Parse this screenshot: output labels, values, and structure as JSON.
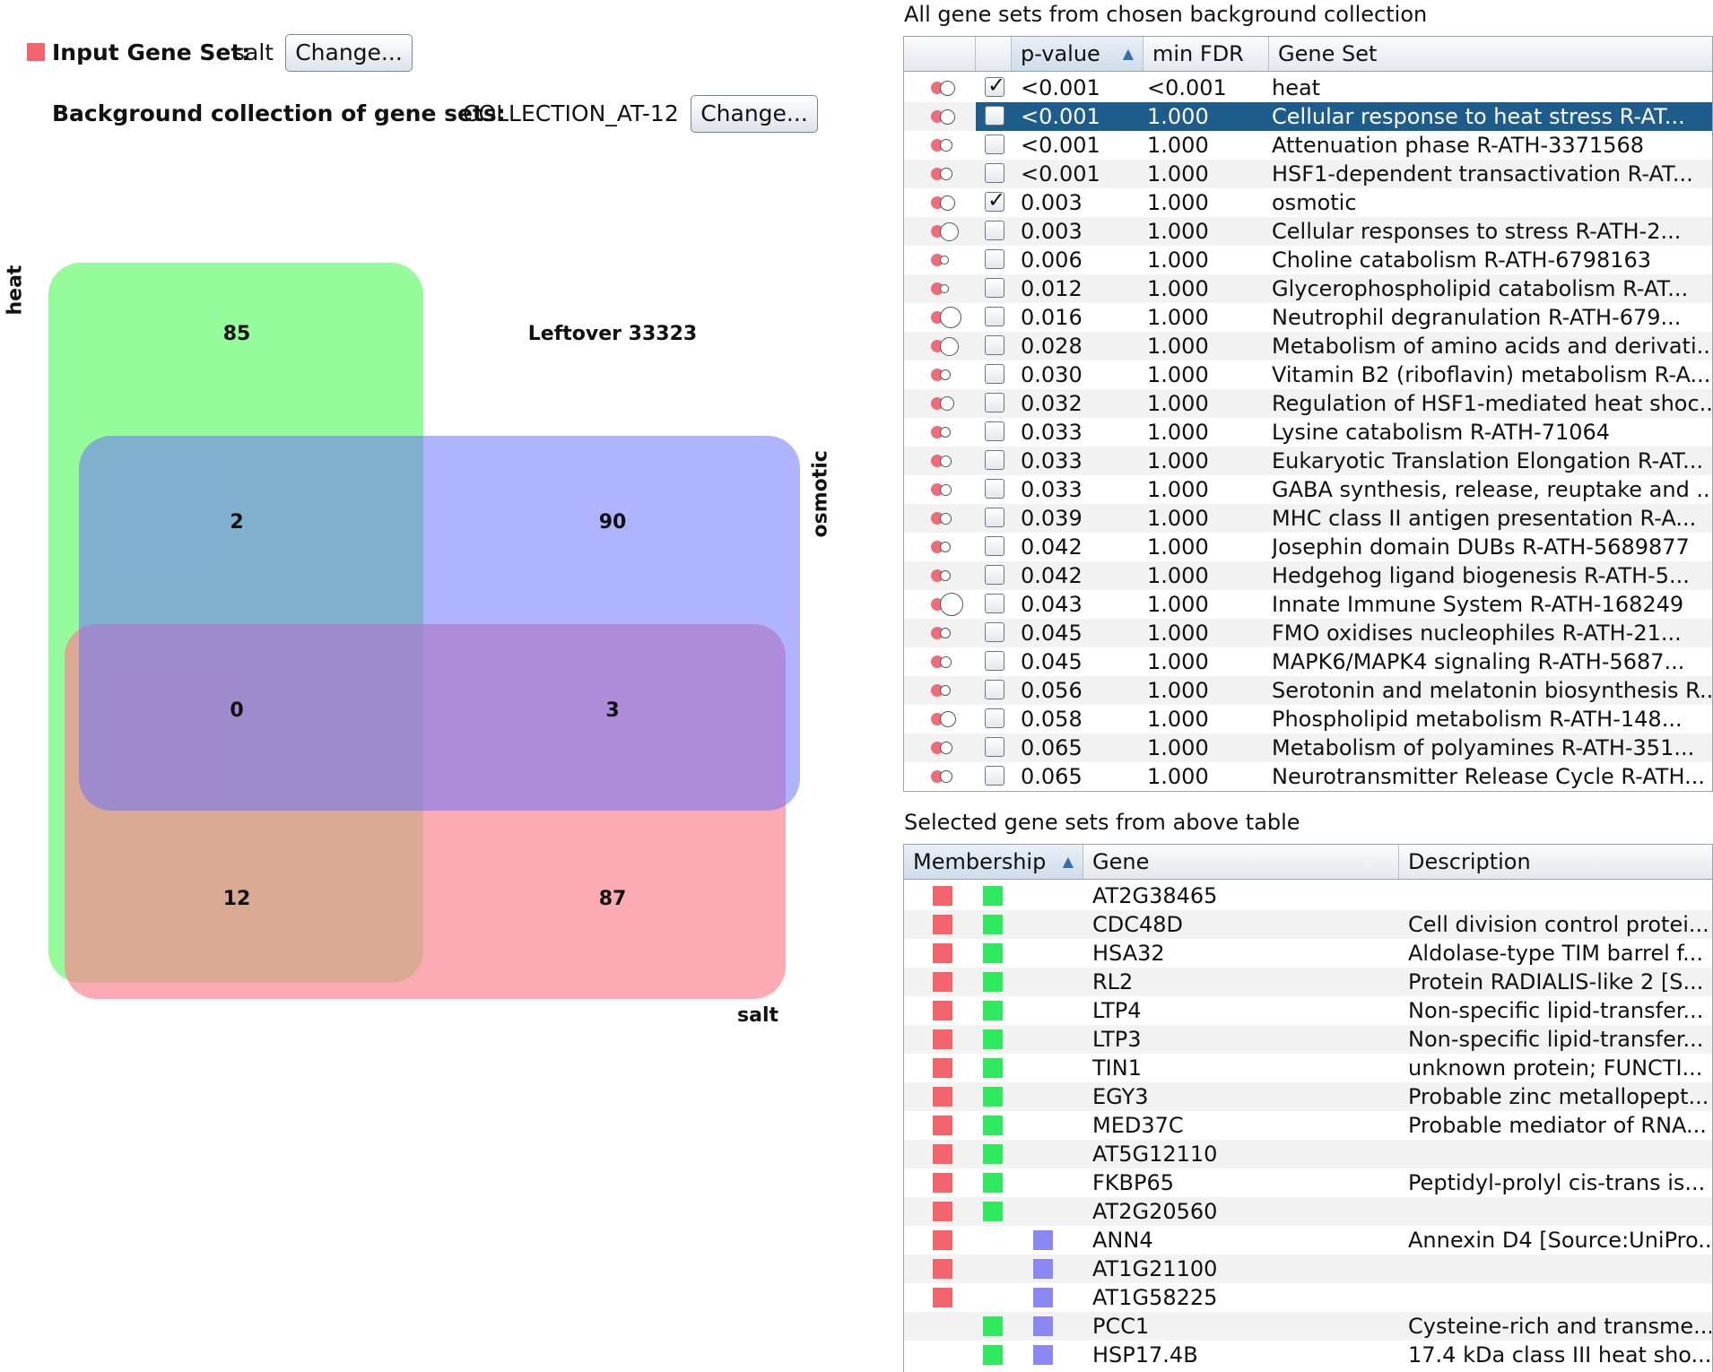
{
  "input": {
    "label": "Input Gene Set:",
    "value": "salt",
    "button": "Change...",
    "swatch_color": "#f4646e"
  },
  "background": {
    "label": "Background collection of gene sets:",
    "value": "COLLECTION_AT-12",
    "button": "Change..."
  },
  "venn": {
    "set_labels": {
      "heat": "heat",
      "osmotic": "osmotic",
      "salt": "salt"
    },
    "colors": {
      "heat": "#8afb8f",
      "osmotic": "#a5a9fb",
      "salt": "#fb9aa5"
    },
    "counts": {
      "heat_only": "85",
      "heat_osmotic": "2",
      "osmotic_only": "90",
      "all_three": "0",
      "osmotic_salt": "3",
      "heat_salt": "12",
      "salt_only": "87"
    },
    "leftover": "Leftover 33323"
  },
  "top_panel": {
    "title": "All gene sets from chosen background collection",
    "columns": [
      "",
      "",
      "p-value",
      "min FDR",
      "Gene Set"
    ],
    "rows": [
      {
        "p": "<0.001",
        "fdr": "<0.001",
        "name": "heat",
        "checked": true,
        "selected": false,
        "big": 0.55
      },
      {
        "p": "<0.001",
        "fdr": "1.000",
        "name": "Cellular response to heat stress  R-AT...",
        "checked": false,
        "selected": true,
        "big": 0.55
      },
      {
        "p": "<0.001",
        "fdr": "1.000",
        "name": "Attenuation phase  R-ATH-3371568",
        "checked": false,
        "selected": false,
        "big": 0.4
      },
      {
        "p": "<0.001",
        "fdr": "1.000",
        "name": "HSF1-dependent transactivation  R-AT...",
        "checked": false,
        "selected": false,
        "big": 0.4
      },
      {
        "p": "0.003",
        "fdr": "1.000",
        "name": "osmotic",
        "checked": true,
        "selected": false,
        "big": 0.55
      },
      {
        "p": "0.003",
        "fdr": "1.000",
        "name": "Cellular responses to stress  R-ATH-2...",
        "checked": false,
        "selected": false,
        "big": 0.8
      },
      {
        "p": "0.006",
        "fdr": "1.000",
        "name": "Choline catabolism  R-ATH-6798163",
        "checked": false,
        "selected": false,
        "big": 0.15
      },
      {
        "p": "0.012",
        "fdr": "1.000",
        "name": "Glycerophospholipid catabolism  R-AT...",
        "checked": false,
        "selected": false,
        "big": 0.15
      },
      {
        "p": "0.016",
        "fdr": "1.000",
        "name": "Neutrophil degranulation  R-ATH-679...",
        "checked": false,
        "selected": false,
        "big": 1.0
      },
      {
        "p": "0.028",
        "fdr": "1.000",
        "name": "Metabolism of amino acids and derivati...",
        "checked": false,
        "selected": false,
        "big": 0.8
      },
      {
        "p": "0.030",
        "fdr": "1.000",
        "name": "Vitamin B2 (riboflavin) metabolism  R-A...",
        "checked": false,
        "selected": false,
        "big": 0.25
      },
      {
        "p": "0.032",
        "fdr": "1.000",
        "name": "Regulation of HSF1-mediated heat shoc...",
        "checked": false,
        "selected": false,
        "big": 0.5
      },
      {
        "p": "0.033",
        "fdr": "1.000",
        "name": "Lysine catabolism  R-ATH-71064",
        "checked": false,
        "selected": false,
        "big": 0.25
      },
      {
        "p": "0.033",
        "fdr": "1.000",
        "name": "Eukaryotic Translation Elongation  R-AT...",
        "checked": false,
        "selected": false,
        "big": 0.3
      },
      {
        "p": "0.033",
        "fdr": "1.000",
        "name": "GABA synthesis, release, reuptake and ...",
        "checked": false,
        "selected": false,
        "big": 0.3
      },
      {
        "p": "0.039",
        "fdr": "1.000",
        "name": "MHC class II antigen presentation  R-A...",
        "checked": false,
        "selected": false,
        "big": 0.3
      },
      {
        "p": "0.042",
        "fdr": "1.000",
        "name": "Josephin domain DUBs  R-ATH-5689877",
        "checked": false,
        "selected": false,
        "big": 0.25
      },
      {
        "p": "0.042",
        "fdr": "1.000",
        "name": "Hedgehog ligand biogenesis  R-ATH-5...",
        "checked": false,
        "selected": false,
        "big": 0.25
      },
      {
        "p": "0.043",
        "fdr": "1.000",
        "name": "Innate Immune System  R-ATH-168249",
        "checked": false,
        "selected": false,
        "big": 1.1
      },
      {
        "p": "0.045",
        "fdr": "1.000",
        "name": "FMO oxidises nucleophiles  R-ATH-21...",
        "checked": false,
        "selected": false,
        "big": 0.25
      },
      {
        "p": "0.045",
        "fdr": "1.000",
        "name": "MAPK6/MAPK4 signaling  R-ATH-5687...",
        "checked": false,
        "selected": false,
        "big": 0.3
      },
      {
        "p": "0.056",
        "fdr": "1.000",
        "name": "Serotonin and melatonin biosynthesis  R...",
        "checked": false,
        "selected": false,
        "big": 0.25
      },
      {
        "p": "0.058",
        "fdr": "1.000",
        "name": "Phospholipid metabolism  R-ATH-148...",
        "checked": false,
        "selected": false,
        "big": 0.6
      },
      {
        "p": "0.065",
        "fdr": "1.000",
        "name": "Metabolism of polyamines  R-ATH-351...",
        "checked": false,
        "selected": false,
        "big": 0.4
      },
      {
        "p": "0.065",
        "fdr": "1.000",
        "name": "Neurotransmitter Release Cycle  R-ATH...",
        "checked": false,
        "selected": false,
        "big": 0.4
      }
    ]
  },
  "bottom_panel": {
    "title": "Selected gene sets from above table",
    "columns": [
      "Membership",
      "Gene",
      "Description"
    ],
    "membership_colors": {
      "salt": "#f4646e",
      "heat": "#2fea5f",
      "osmotic": "#8b88f5"
    },
    "rows": [
      {
        "gene": "AT2G38465",
        "desc": "",
        "m": [
          1,
          1,
          0
        ]
      },
      {
        "gene": "CDC48D",
        "desc": "Cell division control protei...",
        "m": [
          1,
          1,
          0
        ]
      },
      {
        "gene": "HSA32",
        "desc": "Aldolase-type TIM barrel f...",
        "m": [
          1,
          1,
          0
        ]
      },
      {
        "gene": "RL2",
        "desc": "Protein RADIALIS-like 2 [S...",
        "m": [
          1,
          1,
          0
        ]
      },
      {
        "gene": "LTP4",
        "desc": "Non-specific lipid-transfer...",
        "m": [
          1,
          1,
          0
        ]
      },
      {
        "gene": "LTP3",
        "desc": "Non-specific lipid-transfer...",
        "m": [
          1,
          1,
          0
        ]
      },
      {
        "gene": "TIN1",
        "desc": "unknown protein; FUNCTI...",
        "m": [
          1,
          1,
          0
        ]
      },
      {
        "gene": "EGY3",
        "desc": "Probable zinc metallopept...",
        "m": [
          1,
          1,
          0
        ]
      },
      {
        "gene": "MED37C",
        "desc": "Probable mediator of RNA...",
        "m": [
          1,
          1,
          0
        ]
      },
      {
        "gene": "AT5G12110",
        "desc": "",
        "m": [
          1,
          1,
          0
        ]
      },
      {
        "gene": "FKBP65",
        "desc": "Peptidyl-prolyl cis-trans is...",
        "m": [
          1,
          1,
          0
        ]
      },
      {
        "gene": "AT2G20560",
        "desc": "",
        "m": [
          1,
          1,
          0
        ]
      },
      {
        "gene": "ANN4",
        "desc": "Annexin D4 [Source:UniPro...",
        "m": [
          1,
          0,
          1
        ]
      },
      {
        "gene": "AT1G21100",
        "desc": "",
        "m": [
          1,
          0,
          1
        ]
      },
      {
        "gene": "AT1G58225",
        "desc": "",
        "m": [
          1,
          0,
          1
        ]
      },
      {
        "gene": "PCC1",
        "desc": "Cysteine-rich and transme...",
        "m": [
          0,
          1,
          1
        ]
      },
      {
        "gene": "HSP17.4B",
        "desc": "17.4 kDa class III heat sho...",
        "m": [
          0,
          1,
          1
        ]
      }
    ]
  }
}
